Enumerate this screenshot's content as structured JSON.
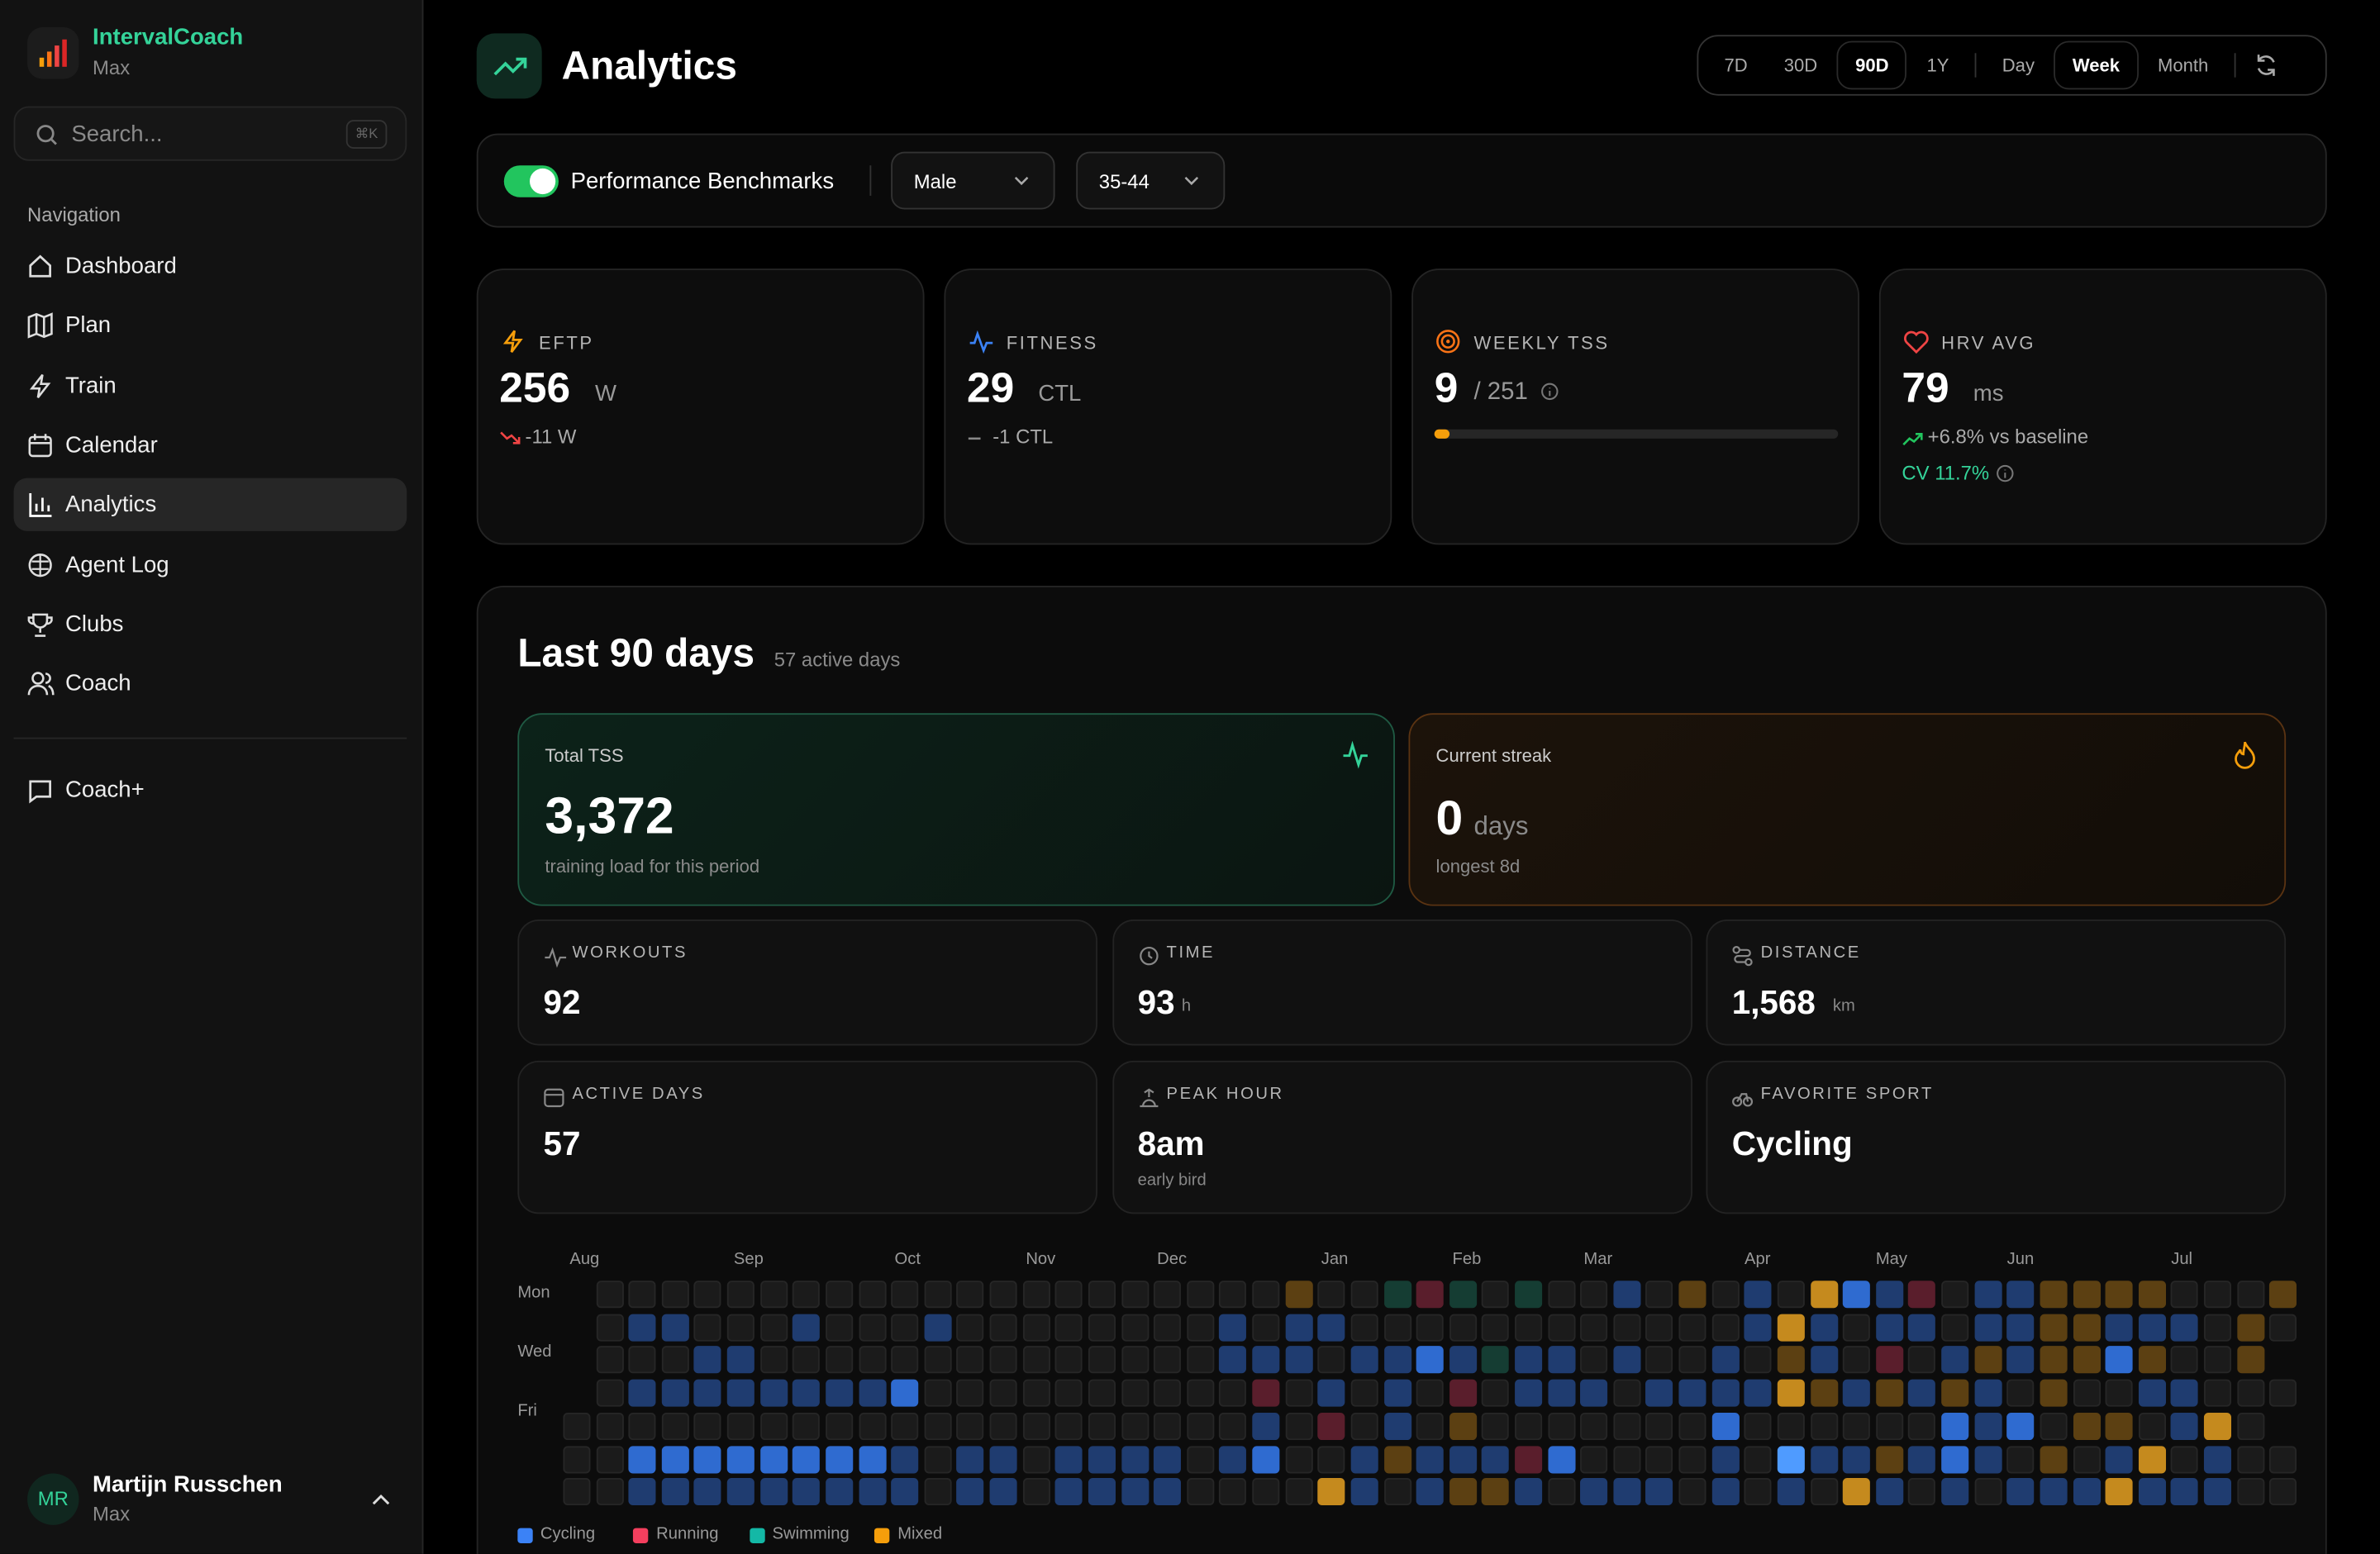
{
  "app": {
    "name": "IntervalCoach",
    "workspace": "Max"
  },
  "search": {
    "placeholder": "Search...",
    "shortcut": "⌘K"
  },
  "nav": {
    "heading": "Navigation",
    "items": [
      "Dashboard",
      "Plan",
      "Train",
      "Calendar",
      "Analytics",
      "Agent Log",
      "Clubs",
      "Coach"
    ],
    "active": 4,
    "extra": "Coach+"
  },
  "user": {
    "initials": "MR",
    "name": "Martijn Russchen",
    "workspace": "Max"
  },
  "header": {
    "title": "Analytics",
    "ranges": [
      "7D",
      "30D",
      "90D",
      "1Y"
    ],
    "active_range": 2,
    "granularity": [
      "Day",
      "Week",
      "Month"
    ],
    "active_granularity": 1
  },
  "benchmarks": {
    "label": "Performance Benchmarks",
    "enabled": true,
    "sex": "Male",
    "age": "35-44"
  },
  "metrics": [
    {
      "label": "EFTP",
      "value": "256",
      "unit": "W",
      "trend": "-11 W"
    },
    {
      "label": "FITNESS",
      "value": "29",
      "unit": "CTL",
      "trend": "-1 CTL"
    },
    {
      "label": "WEEKLY TSS",
      "value": 9,
      "target": {
        "value": 251,
        "label": "/ 251"
      }
    },
    {
      "label": "HRV AVG",
      "value": "79",
      "unit": "ms",
      "trend": "+6.8% vs baseline",
      "cv": "CV 11.7%"
    }
  ],
  "summary": {
    "title": "Last 90 days",
    "subtitle": "57 active days",
    "total": {
      "label": "Total TSS",
      "value": "3,372",
      "note": "training load for this period"
    },
    "streak": {
      "label": "Current streak",
      "value": "0",
      "unit": "days",
      "note": "longest 8d"
    },
    "stats": [
      {
        "label": "WORKOUTS",
        "value": "92"
      },
      {
        "label": "TIME",
        "value": "93",
        "unit": "h"
      },
      {
        "label": "DISTANCE",
        "value": "1,568",
        "unit": "km"
      },
      {
        "label": "ACTIVE DAYS",
        "value": "57"
      },
      {
        "label": "PEAK HOUR",
        "value": "8am",
        "note": "early bird"
      },
      {
        "label": "FAVORITE SPORT",
        "value": "Cycling"
      }
    ]
  },
  "heatmap": {
    "months": [
      "Aug",
      "Sep",
      "Oct",
      "Nov",
      "Dec",
      "Jan",
      "Feb",
      "Mar",
      "Apr",
      "May",
      "Jun",
      "Jul"
    ],
    "days": [
      "Mon",
      "Wed",
      "Fri"
    ],
    "rows": [
      " .....................o..grg.g..b.o.b.OBbr.bboooo...o",
      " .bb...b...b........b.bb............bOb.bb.bboobbb.o.",
      " ...bb..............bbb.bbBbgbb.b..b.ob.r.bobooBo..o",
      " .bbbbbbbbB..........r.b.b.r.bbb.bbbbOobobob.o..bb...",
      ".....................b.r.b.o.......B......BbB.oo.bO.",
      "..BBBBBBBBb.bb.bbbb.bB..bobbbrB....b.LbbobBb.o.bO.b..",
      "..bbbbbbbbb.bb.bbbb....Ob.boob.bbb.b.b.Ob.b.bbbObbb.."
    ],
    "legend": [
      {
        "name": "Cycling",
        "color": "#3b82f6"
      },
      {
        "name": "Running",
        "color": "#f43f5e"
      },
      {
        "name": "Swimming",
        "color": "#14b8a6"
      },
      {
        "name": "Mixed",
        "color": "#f59e0b"
      }
    ]
  }
}
